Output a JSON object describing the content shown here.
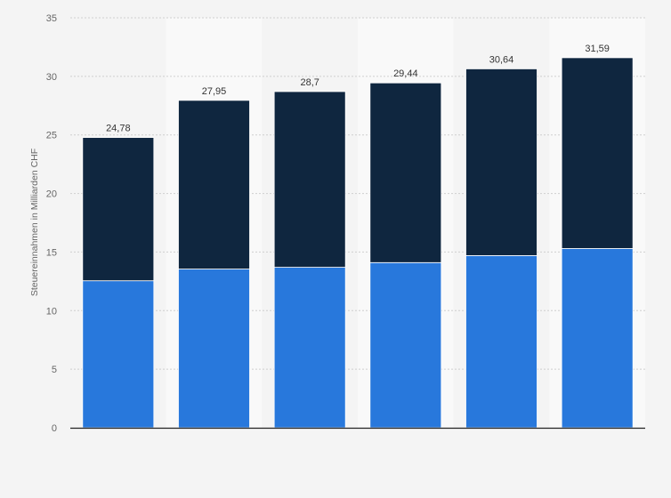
{
  "chart_data": {
    "type": "bar",
    "stacked": true,
    "title": "",
    "xlabel": "",
    "ylabel": "Steuereinnahmen in Milliarden CHF",
    "ylim": [
      0,
      35
    ],
    "yticks": [
      0,
      5,
      10,
      15,
      20,
      25,
      30,
      35
    ],
    "categories": [
      "",
      "",
      "",
      "",
      "",
      ""
    ],
    "series": [
      {
        "values": [
          12.55,
          13.55,
          13.7,
          14.1,
          14.7,
          15.3
        ],
        "color": "#2878dc"
      },
      {
        "values": [
          12.23,
          14.4,
          15.0,
          15.34,
          15.94,
          16.29
        ],
        "color": "#0f263f"
      }
    ],
    "totals": [
      "24,78",
      "27,95",
      "28,7",
      "29,44",
      "30,64",
      "31,59"
    ],
    "grid": true,
    "legend": "none",
    "colors": {
      "background": "#f4f4f4",
      "plot_band_light": "#f9f9f9",
      "plot_band_alt": "#f4f4f4",
      "grid": "#cfcfcf",
      "baseline": "#222222",
      "bar_bottom": "#2878dc",
      "bar_top": "#0f263f"
    }
  }
}
